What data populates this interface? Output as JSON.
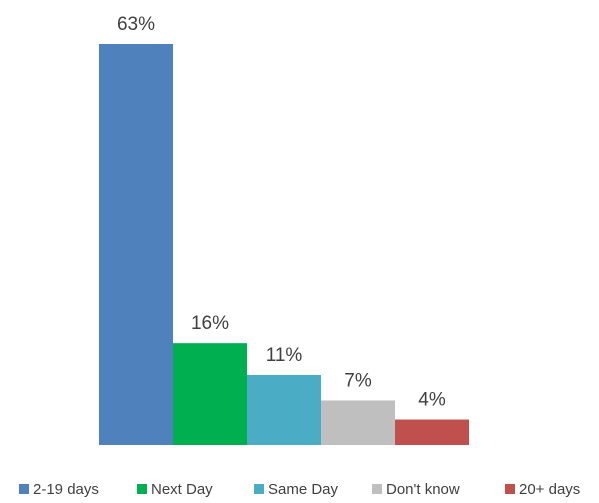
{
  "chart_data": {
    "type": "bar",
    "title": "",
    "xlabel": "",
    "ylabel": "",
    "ylim": [
      0,
      63
    ],
    "grid": false,
    "legend_position": "bottom",
    "series": [
      {
        "name": "2-19 days",
        "value": 63,
        "label": "63%",
        "color": "#4f81bd"
      },
      {
        "name": "Next Day",
        "value": 16,
        "label": "16%",
        "color": "#00b050"
      },
      {
        "name": "Same Day",
        "value": 11,
        "label": "11%",
        "color": "#4bacc6"
      },
      {
        "name": "Don't know",
        "value": 7,
        "label": "7%",
        "color": "#bfbfbf"
      },
      {
        "name": "20+ days",
        "value": 4,
        "label": "4%",
        "color": "#c0504d"
      }
    ]
  }
}
